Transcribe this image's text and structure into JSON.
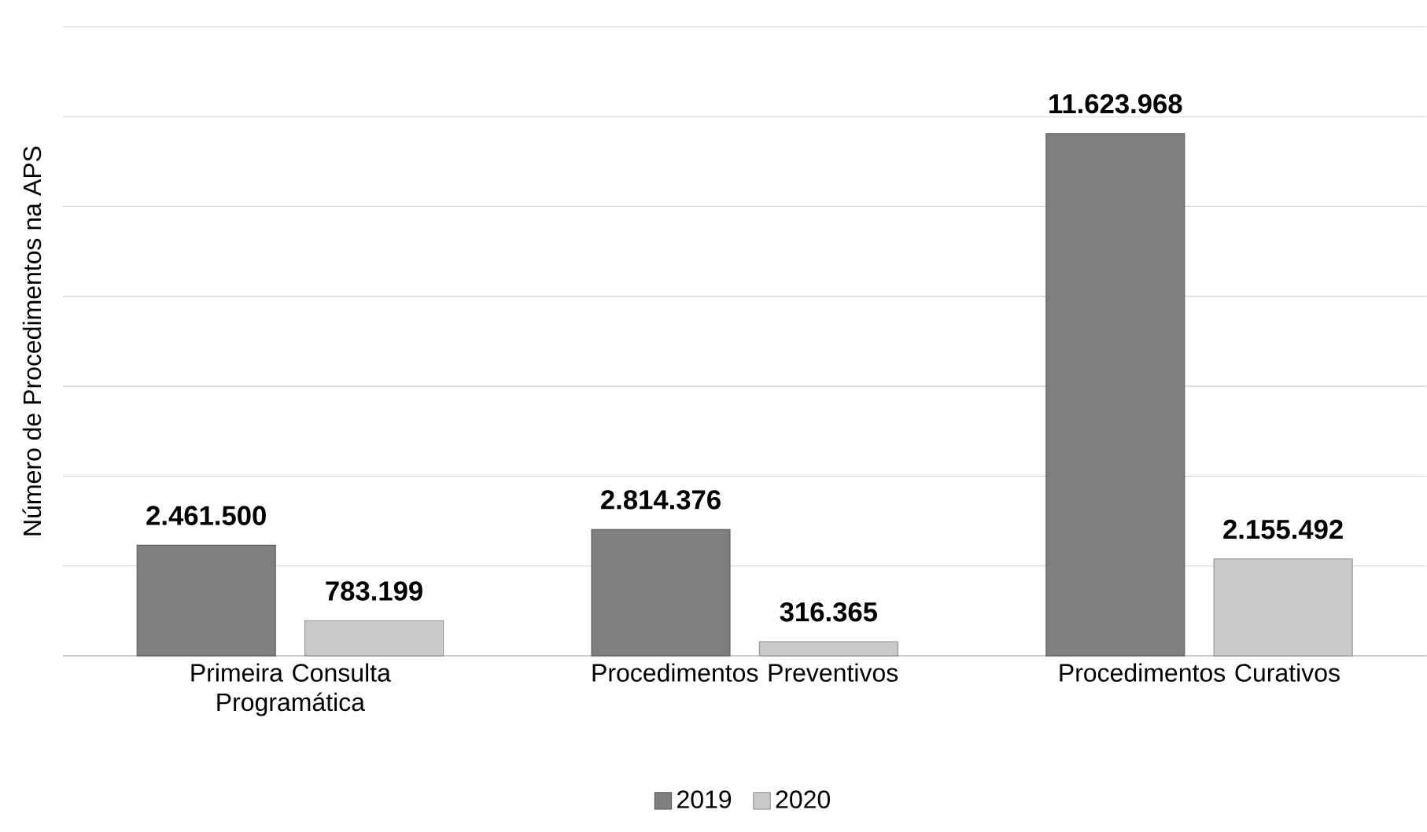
{
  "chart_data": {
    "type": "bar",
    "ylabel": "Número de Procedimentos na APS",
    "categories": [
      "Primeira Consulta Programática",
      "Procedimentos Preventivos",
      "Procedimentos Curativos"
    ],
    "series": [
      {
        "name": "2019",
        "color": "#7f7f7f",
        "values": [
          2461500,
          2814376,
          11623968
        ],
        "value_labels": [
          "2.461.500",
          "2.814.376",
          "11.623.968"
        ]
      },
      {
        "name": "2020",
        "color": "#c9c9c9",
        "values": [
          783199,
          316365,
          2155492
        ],
        "value_labels": [
          "783.199",
          "316.365",
          "2.155.492"
        ]
      }
    ],
    "ylim": [
      0,
      14000000
    ],
    "tick_labels": "x",
    "grid": "y",
    "legend": "bottom"
  }
}
